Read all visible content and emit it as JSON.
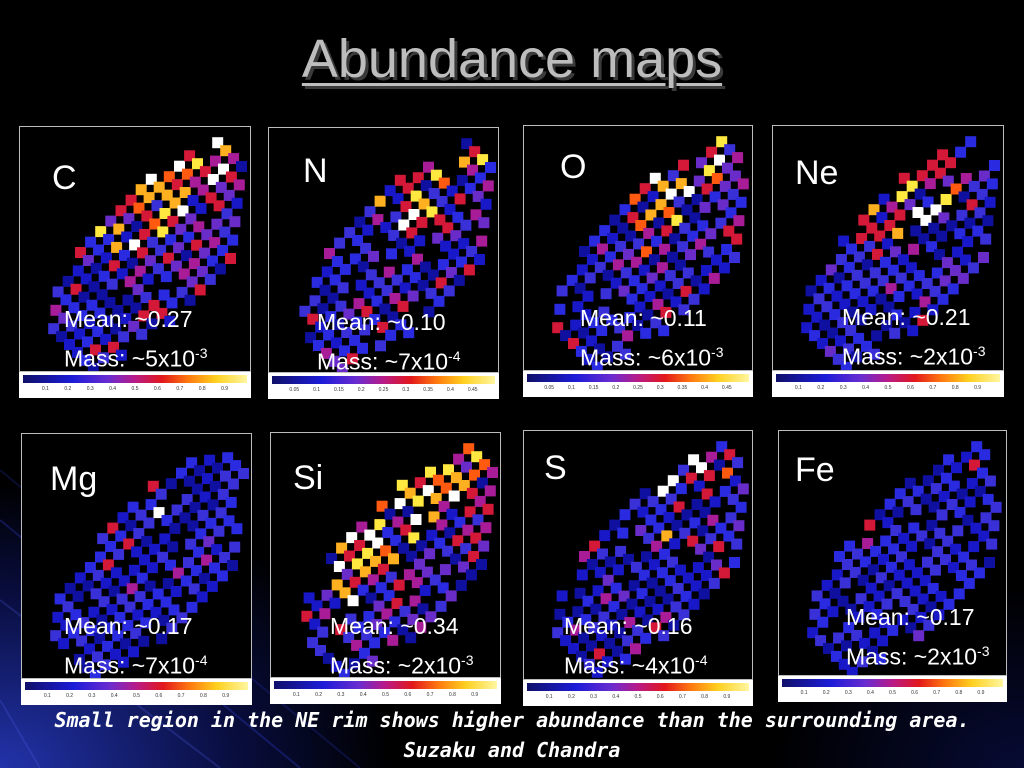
{
  "title": "Abundance maps",
  "panels": [
    {
      "element": "C",
      "mean": "Mean: ~0.27",
      "mass_base": "Mass: ~5x10",
      "mass_exp": "-3",
      "colorbar_ticks": [
        "0.1",
        "0.2",
        "0.3",
        "0.4",
        "0.5",
        "0.6",
        "0.7",
        "0.8",
        "0.9"
      ]
    },
    {
      "element": "N",
      "mean": "Mean: ~0.10",
      "mass_base": "Mass: ~7x10",
      "mass_exp": "-4",
      "colorbar_ticks": [
        "0.05",
        "0.1",
        "0.15",
        "0.2",
        "0.25",
        "0.3",
        "0.35",
        "0.4",
        "0.45"
      ]
    },
    {
      "element": "O",
      "mean": "Mean: ~0.11",
      "mass_base": "Mass: ~6x10",
      "mass_exp": "-3",
      "colorbar_ticks": [
        "0.05",
        "0.1",
        "0.15",
        "0.2",
        "0.25",
        "0.3",
        "0.35",
        "0.4",
        "0.45"
      ]
    },
    {
      "element": "Ne",
      "mean": "Mean: ~0.21",
      "mass_base": "Mass: ~2x10",
      "mass_exp": "-3",
      "colorbar_ticks": [
        "0.1",
        "0.2",
        "0.3",
        "0.4",
        "0.5",
        "0.6",
        "0.7",
        "0.8",
        "0.9"
      ]
    },
    {
      "element": "Mg",
      "mean": "Mean: ~0.17",
      "mass_base": "Mass: ~7x10",
      "mass_exp": "-4",
      "colorbar_ticks": [
        "0.1",
        "0.2",
        "0.3",
        "0.4",
        "0.5",
        "0.6",
        "0.7",
        "0.8",
        "0.9"
      ]
    },
    {
      "element": "Si",
      "mean": "Mean: ~0.34",
      "mass_base": "Mass: ~2x10",
      "mass_exp": "-3",
      "colorbar_ticks": [
        "0.1",
        "0.2",
        "0.3",
        "0.4",
        "0.5",
        "0.6",
        "0.7",
        "0.8",
        "0.9"
      ]
    },
    {
      "element": "S",
      "mean": "Mean: ~0.16",
      "mass_base": "Mass: ~4x10",
      "mass_exp": "-4",
      "colorbar_ticks": [
        "0.1",
        "0.2",
        "0.3",
        "0.4",
        "0.5",
        "0.6",
        "0.7",
        "0.8",
        "0.9"
      ]
    },
    {
      "element": "Fe",
      "mean": "Mean: ~0.17",
      "mass_base": "Mass: ~2x10",
      "mass_exp": "-3",
      "colorbar_ticks": [
        "0.1",
        "0.2",
        "0.3",
        "0.4",
        "0.5",
        "0.6",
        "0.7",
        "0.8",
        "0.9"
      ]
    }
  ],
  "footer": {
    "line1": "Small region in the NE rim  shows higher abundance than the surrounding area.",
    "line2": "Suzaku and Chandra"
  },
  "colors": {
    "map_low": "#1a1ad0",
    "map_mid": "#c0186c",
    "map_high": "#ffe840",
    "title": "#bdbdbd"
  }
}
